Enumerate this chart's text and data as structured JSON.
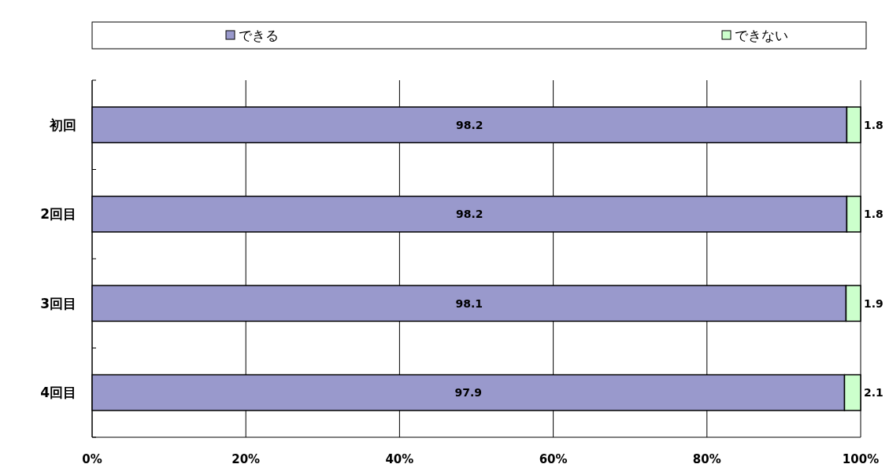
{
  "chart_data": {
    "type": "bar",
    "orientation": "horizontal",
    "stacked": true,
    "categories": [
      "初回",
      "2回目",
      "3回目",
      "4回目"
    ],
    "series": [
      {
        "name": "できる",
        "color": "#9999cc",
        "values": [
          98.2,
          98.2,
          98.1,
          97.9
        ]
      },
      {
        "name": "できない",
        "color": "#ccffcc",
        "values": [
          1.8,
          1.8,
          1.9,
          2.1
        ]
      }
    ],
    "xlim": [
      0,
      100
    ],
    "xticks": [
      {
        "value": 0,
        "label": "0%"
      },
      {
        "value": 20,
        "label": "20%"
      },
      {
        "value": 40,
        "label": "40%"
      },
      {
        "value": 60,
        "label": "60%"
      },
      {
        "value": 80,
        "label": "80%"
      },
      {
        "value": 100,
        "label": "100%"
      }
    ],
    "grid": "x",
    "legend": "top",
    "data_labels": true
  }
}
